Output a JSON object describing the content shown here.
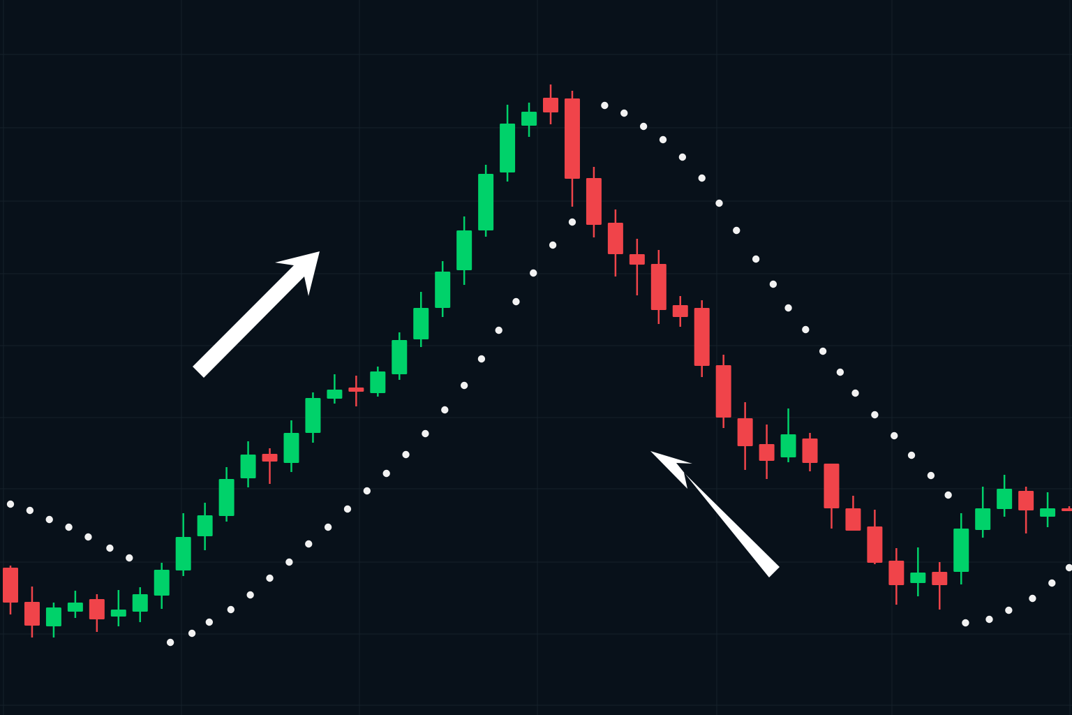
{
  "chart_data": {
    "type": "candlestick",
    "title": "",
    "xlabel": "",
    "ylabel": "",
    "grid": true,
    "legend": "none",
    "colors": {
      "background": "#08111a",
      "grid": "#16212b",
      "up": "#00d26a",
      "down": "#f0444a",
      "sar": "#f2f2f2",
      "arrow": "#ffffff"
    },
    "candles": [
      {
        "o": 18.7,
        "h": 19.0,
        "l": 12.0,
        "c": 13.7
      },
      {
        "o": 13.8,
        "h": 16.0,
        "l": 8.7,
        "c": 10.4
      },
      {
        "o": 10.3,
        "h": 13.7,
        "l": 8.7,
        "c": 13.0
      },
      {
        "o": 12.4,
        "h": 15.4,
        "l": 11.5,
        "c": 13.7
      },
      {
        "o": 14.2,
        "h": 14.9,
        "l": 9.5,
        "c": 11.3
      },
      {
        "o": 11.7,
        "h": 15.5,
        "l": 10.3,
        "c": 12.7
      },
      {
        "o": 12.4,
        "h": 15.9,
        "l": 10.9,
        "c": 14.9
      },
      {
        "o": 14.7,
        "h": 19.4,
        "l": 12.8,
        "c": 18.4
      },
      {
        "o": 18.3,
        "h": 26.5,
        "l": 17.5,
        "c": 23.1
      },
      {
        "o": 23.2,
        "h": 28.0,
        "l": 21.2,
        "c": 26.2
      },
      {
        "o": 26.1,
        "h": 33.1,
        "l": 25.3,
        "c": 31.4
      },
      {
        "o": 31.5,
        "h": 36.8,
        "l": 30.2,
        "c": 34.9
      },
      {
        "o": 35.0,
        "h": 35.8,
        "l": 30.7,
        "c": 33.9
      },
      {
        "o": 33.7,
        "h": 39.8,
        "l": 32.4,
        "c": 38.0
      },
      {
        "o": 38.0,
        "h": 43.8,
        "l": 36.6,
        "c": 43.0
      },
      {
        "o": 42.9,
        "h": 46.4,
        "l": 42.2,
        "c": 44.2
      },
      {
        "o": 44.5,
        "h": 46.2,
        "l": 41.8,
        "c": 43.9
      },
      {
        "o": 43.7,
        "h": 47.5,
        "l": 43.2,
        "c": 46.8
      },
      {
        "o": 46.4,
        "h": 52.4,
        "l": 45.6,
        "c": 51.3
      },
      {
        "o": 51.4,
        "h": 58.2,
        "l": 50.3,
        "c": 55.9
      },
      {
        "o": 55.9,
        "h": 62.6,
        "l": 54.6,
        "c": 61.1
      },
      {
        "o": 61.3,
        "h": 69.0,
        "l": 59.2,
        "c": 67.0
      },
      {
        "o": 67.0,
        "h": 76.4,
        "l": 66.1,
        "c": 75.1
      },
      {
        "o": 75.3,
        "h": 85.0,
        "l": 74.0,
        "c": 82.3
      },
      {
        "o": 82.0,
        "h": 85.3,
        "l": 80.4,
        "c": 84.0
      },
      {
        "o": 86.0,
        "h": 87.9,
        "l": 82.2,
        "c": 83.9
      },
      {
        "o": 85.9,
        "h": 87.0,
        "l": 70.4,
        "c": 74.4
      },
      {
        "o": 74.5,
        "h": 76.1,
        "l": 66.0,
        "c": 67.8
      },
      {
        "o": 68.1,
        "h": 70.0,
        "l": 60.4,
        "c": 63.6
      },
      {
        "o": 63.6,
        "h": 65.8,
        "l": 57.7,
        "c": 62.1
      },
      {
        "o": 62.2,
        "h": 64.2,
        "l": 53.6,
        "c": 55.6
      },
      {
        "o": 56.3,
        "h": 57.6,
        "l": 53.2,
        "c": 54.6
      },
      {
        "o": 55.9,
        "h": 57.0,
        "l": 46.0,
        "c": 47.6
      },
      {
        "o": 47.7,
        "h": 49.2,
        "l": 38.7,
        "c": 40.2
      },
      {
        "o": 40.1,
        "h": 42.4,
        "l": 32.7,
        "c": 36.1
      },
      {
        "o": 36.4,
        "h": 39.2,
        "l": 31.4,
        "c": 34.0
      },
      {
        "o": 34.5,
        "h": 41.5,
        "l": 33.8,
        "c": 37.8
      },
      {
        "o": 37.2,
        "h": 38.0,
        "l": 32.5,
        "c": 33.7
      },
      {
        "o": 33.6,
        "h": 33.6,
        "l": 24.3,
        "c": 27.2
      },
      {
        "o": 27.2,
        "h": 29.0,
        "l": 24.0,
        "c": 24.0
      },
      {
        "o": 24.6,
        "h": 27.0,
        "l": 19.2,
        "c": 19.4
      },
      {
        "o": 19.7,
        "h": 21.5,
        "l": 13.4,
        "c": 16.2
      },
      {
        "o": 16.5,
        "h": 21.6,
        "l": 14.6,
        "c": 18.0
      },
      {
        "o": 18.1,
        "h": 19.5,
        "l": 12.7,
        "c": 16.2
      },
      {
        "o": 18.1,
        "h": 26.5,
        "l": 16.3,
        "c": 24.3
      },
      {
        "o": 24.1,
        "h": 30.3,
        "l": 23.0,
        "c": 27.2
      },
      {
        "o": 27.1,
        "h": 32.0,
        "l": 26.0,
        "c": 30.0
      },
      {
        "o": 29.7,
        "h": 30.3,
        "l": 23.6,
        "c": 26.9
      },
      {
        "o": 26.0,
        "h": 29.5,
        "l": 24.5,
        "c": 27.2
      },
      {
        "o": 27.2,
        "h": 27.5,
        "l": 26.8,
        "c": 26.9
      }
    ],
    "sar": [
      [
        0,
        27.8
      ],
      [
        0.9,
        26.9
      ],
      [
        1.8,
        25.6
      ],
      [
        2.7,
        24.5
      ],
      [
        3.6,
        23.1
      ],
      [
        4.6,
        21.5
      ],
      [
        5.5,
        20.1
      ],
      [
        7.4,
        8.0
      ],
      [
        8.4,
        9.3
      ],
      [
        9.2,
        10.9
      ],
      [
        10.2,
        12.7
      ],
      [
        11.1,
        14.8
      ],
      [
        12.0,
        17.2
      ],
      [
        12.9,
        19.5
      ],
      [
        13.8,
        22.1
      ],
      [
        14.7,
        24.5
      ],
      [
        15.6,
        27.1
      ],
      [
        16.5,
        29.7
      ],
      [
        17.4,
        32.2
      ],
      [
        18.3,
        34.9
      ],
      [
        19.2,
        37.9
      ],
      [
        20.1,
        41.3
      ],
      [
        21.0,
        44.8
      ],
      [
        21.8,
        48.6
      ],
      [
        22.6,
        52.7
      ],
      [
        23.4,
        56.8
      ],
      [
        24.2,
        60.9
      ],
      [
        25.1,
        64.9
      ],
      [
        26.0,
        68.2
      ],
      [
        27.5,
        84.9
      ],
      [
        28.4,
        83.8
      ],
      [
        29.3,
        81.9
      ],
      [
        30.2,
        80.0
      ],
      [
        31.1,
        77.5
      ],
      [
        32.0,
        74.5
      ],
      [
        32.8,
        70.9
      ],
      [
        33.6,
        67.0
      ],
      [
        34.5,
        62.9
      ],
      [
        35.3,
        59.3
      ],
      [
        36.0,
        55.9
      ],
      [
        36.8,
        52.8
      ],
      [
        37.6,
        49.7
      ],
      [
        38.4,
        46.7
      ],
      [
        39.1,
        43.7
      ],
      [
        40.0,
        40.6
      ],
      [
        40.9,
        37.6
      ],
      [
        41.7,
        34.8
      ],
      [
        42.6,
        31.9
      ],
      [
        43.4,
        29.1
      ],
      [
        44.2,
        10.8
      ],
      [
        45.3,
        11.3
      ],
      [
        46.2,
        12.6
      ],
      [
        47.3,
        14.3
      ],
      [
        48.2,
        16.5
      ],
      [
        49.0,
        18.7
      ]
    ],
    "annotations": [
      {
        "type": "arrow",
        "direction": "up-right",
        "meaning": "uptrend"
      },
      {
        "type": "arrow",
        "direction": "up-left",
        "meaning": "downtrend"
      }
    ]
  }
}
